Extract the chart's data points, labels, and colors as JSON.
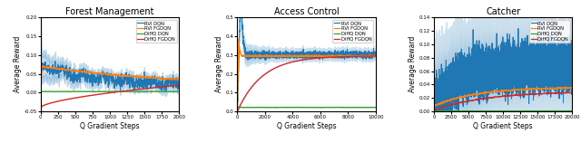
{
  "titles": [
    "Forest Management",
    "Access Control",
    "Catcher"
  ],
  "xlabel": "Q Gradient Steps",
  "ylabel": "Average Reward",
  "legend_labels": [
    "RVI DQN",
    "RVI FGDQN",
    "DiffQ DQN",
    "DiffQ FGDQN"
  ],
  "colors": [
    "#1f77b4",
    "#ff7f0e",
    "#2ca02c",
    "#d62728"
  ],
  "subplot1": {
    "xlim": [
      0,
      2000
    ],
    "ylim": [
      -0.05,
      0.2
    ],
    "yticks": [
      -0.05,
      0.0,
      0.05,
      0.1,
      0.15,
      0.2
    ],
    "xticks": [
      0,
      250,
      500,
      750,
      1000,
      1250,
      1500,
      1750,
      2000
    ]
  },
  "subplot2": {
    "xlim": [
      0,
      10000
    ],
    "ylim": [
      0.0,
      0.5
    ],
    "yticks": [
      0.0,
      0.1,
      0.2,
      0.3,
      0.4,
      0.5
    ],
    "xticks": [
      0,
      2000,
      4000,
      6000,
      8000,
      10000
    ]
  },
  "subplot3": {
    "xlim": [
      0,
      20000
    ],
    "ylim": [
      0.0,
      0.14
    ],
    "yticks": [
      0.0,
      0.02,
      0.04,
      0.06,
      0.08,
      0.1,
      0.12,
      0.14
    ],
    "xticks": [
      0,
      2500,
      5000,
      7500,
      10000,
      12500,
      15000,
      17500,
      20000
    ]
  },
  "seed": 42
}
